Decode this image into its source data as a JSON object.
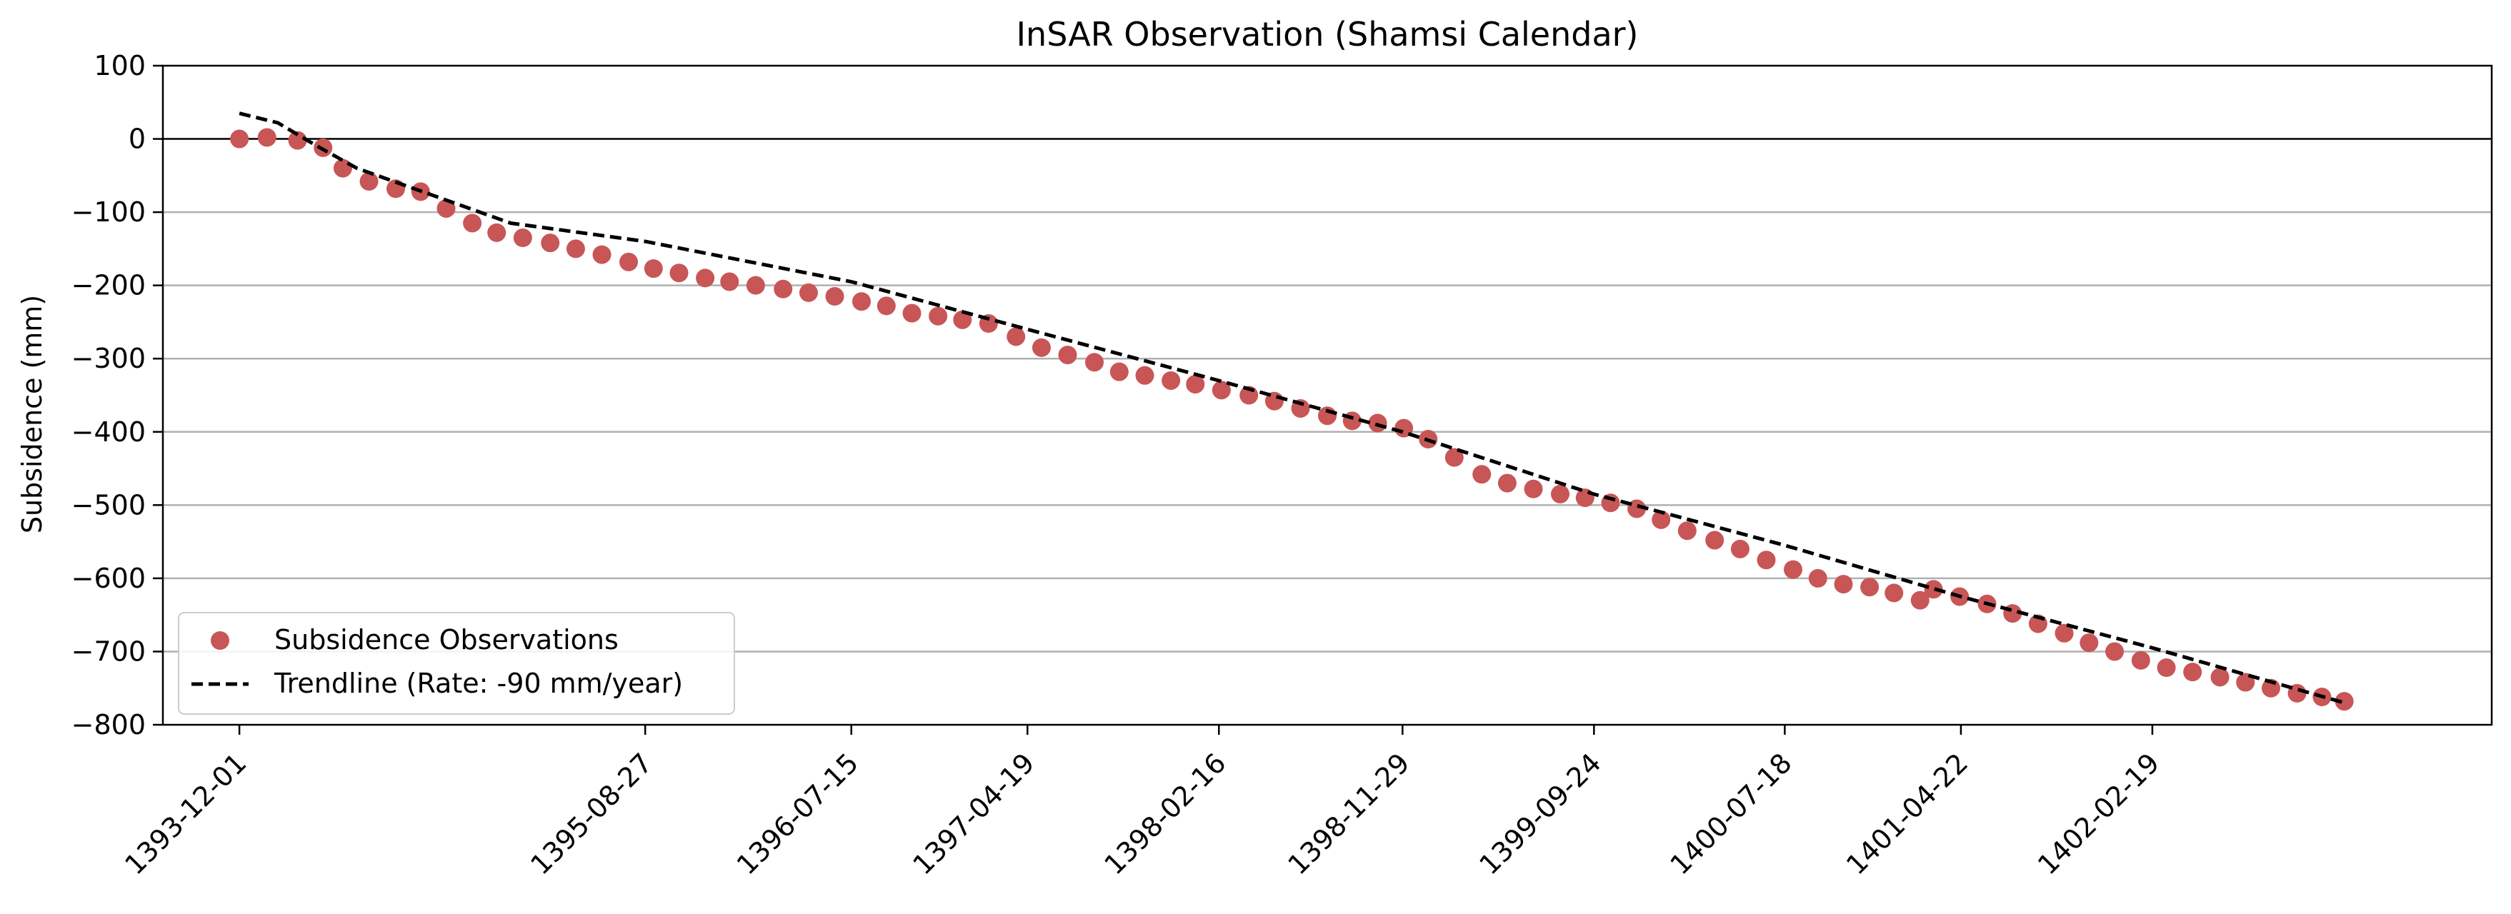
{
  "chart_data": {
    "type": "scatter",
    "title": "InSAR Observation (Shamsi Calendar)",
    "xlabel": "",
    "ylabel": "Subsidence (mm)",
    "ylim": [
      -800,
      100
    ],
    "yticks": [
      100,
      0,
      -100,
      -200,
      -300,
      -400,
      -500,
      -600,
      -700,
      -800
    ],
    "ytick_labels": [
      "100",
      "0",
      "−100",
      "−200",
      "−300",
      "−400",
      "−500",
      "−600",
      "−700",
      "−800"
    ],
    "xlim": [
      "1393-08-01",
      "1403-08-01"
    ],
    "xticks": [
      "1393-12-01",
      "1395-08-27",
      "1396-07-15",
      "1397-04-19",
      "1398-02-16",
      "1398-11-29",
      "1399-09-24",
      "1400-07-18",
      "1401-04-22",
      "1402-02-19"
    ],
    "grid": "horizontal",
    "zero_line": true,
    "legend_position": "lower-left",
    "colors": {
      "observations": "#c85656",
      "trendline": "#000000"
    },
    "series": [
      {
        "name": "Subsidence Observations",
        "type": "scatter",
        "points": [
          [
            "1393-12-01",
            0
          ],
          [
            "1394-01-15",
            2
          ],
          [
            "1394-03-01",
            -2
          ],
          [
            "1394-04-10",
            -12
          ],
          [
            "1394-05-10",
            -40
          ],
          [
            "1394-06-20",
            -58
          ],
          [
            "1394-08-01",
            -68
          ],
          [
            "1394-09-10",
            -72
          ],
          [
            "1394-10-20",
            -95
          ],
          [
            "1394-12-01",
            -115
          ],
          [
            "1395-01-10",
            -128
          ],
          [
            "1395-02-20",
            -135
          ],
          [
            "1395-04-01",
            -142
          ],
          [
            "1395-05-10",
            -150
          ],
          [
            "1395-06-20",
            -158
          ],
          [
            "1395-08-01",
            -168
          ],
          [
            "1395-09-10",
            -177
          ],
          [
            "1395-10-20",
            -183
          ],
          [
            "1395-12-01",
            -190
          ],
          [
            "1396-01-10",
            -195
          ],
          [
            "1396-02-20",
            -200
          ],
          [
            "1396-04-01",
            -205
          ],
          [
            "1396-05-10",
            -210
          ],
          [
            "1396-06-20",
            -215
          ],
          [
            "1396-08-01",
            -222
          ],
          [
            "1396-09-10",
            -228
          ],
          [
            "1396-10-20",
            -238
          ],
          [
            "1396-12-01",
            -242
          ],
          [
            "1397-01-10",
            -247
          ],
          [
            "1397-02-20",
            -252
          ],
          [
            "1397-04-01",
            -270
          ],
          [
            "1397-05-10",
            -285
          ],
          [
            "1397-06-20",
            -295
          ],
          [
            "1397-08-01",
            -305
          ],
          [
            "1397-09-10",
            -318
          ],
          [
            "1397-10-20",
            -323
          ],
          [
            "1397-12-01",
            -330
          ],
          [
            "1398-01-10",
            -335
          ],
          [
            "1398-02-20",
            -343
          ],
          [
            "1398-04-01",
            -350
          ],
          [
            "1398-05-10",
            -358
          ],
          [
            "1398-06-20",
            -368
          ],
          [
            "1398-08-01",
            -378
          ],
          [
            "1398-09-10",
            -385
          ],
          [
            "1398-10-20",
            -388
          ],
          [
            "1398-12-01",
            -395
          ],
          [
            "1399-01-10",
            -410
          ],
          [
            "1399-02-20",
            -435
          ],
          [
            "1399-04-01",
            -458
          ],
          [
            "1399-05-10",
            -470
          ],
          [
            "1399-06-20",
            -478
          ],
          [
            "1399-08-01",
            -485
          ],
          [
            "1399-09-10",
            -490
          ],
          [
            "1399-10-20",
            -497
          ],
          [
            "1399-12-01",
            -505
          ],
          [
            "1400-01-10",
            -520
          ],
          [
            "1400-02-20",
            -535
          ],
          [
            "1400-04-01",
            -548
          ],
          [
            "1400-05-10",
            -560
          ],
          [
            "1400-06-20",
            -575
          ],
          [
            "1400-08-01",
            -588
          ],
          [
            "1400-09-10",
            -600
          ],
          [
            "1400-10-20",
            -608
          ],
          [
            "1400-12-01",
            -612
          ],
          [
            "1401-01-10",
            -620
          ],
          [
            "1401-02-20",
            -630
          ],
          [
            "1401-03-10",
            -615
          ],
          [
            "1401-04-20",
            -625
          ],
          [
            "1401-06-01",
            -635
          ],
          [
            "1401-07-10",
            -648
          ],
          [
            "1401-08-20",
            -662
          ],
          [
            "1401-10-01",
            -675
          ],
          [
            "1401-11-10",
            -688
          ],
          [
            "1401-12-20",
            -700
          ],
          [
            "1402-02-01",
            -712
          ],
          [
            "1402-03-10",
            -722
          ],
          [
            "1402-04-20",
            -728
          ],
          [
            "1402-06-01",
            -735
          ],
          [
            "1402-07-10",
            -742
          ],
          [
            "1402-08-20",
            -750
          ],
          [
            "1402-10-01",
            -757
          ],
          [
            "1402-11-10",
            -762
          ],
          [
            "1402-12-15",
            -768
          ]
        ]
      },
      {
        "name": "Trendline (Rate: -90 mm/year)",
        "type": "line",
        "style": "dashed",
        "points": [
          [
            "1393-12-01",
            35
          ],
          [
            "1394-02-01",
            22
          ],
          [
            "1394-04-01",
            -10
          ],
          [
            "1394-06-01",
            -40
          ],
          [
            "1395-02-01",
            -115
          ],
          [
            "1395-08-27",
            -140
          ],
          [
            "1396-07-15",
            -195
          ],
          [
            "1397-04-19",
            -260
          ],
          [
            "1398-02-16",
            -330
          ],
          [
            "1398-11-29",
            -400
          ],
          [
            "1399-09-24",
            -485
          ],
          [
            "1400-07-18",
            -555
          ],
          [
            "1401-04-22",
            -625
          ],
          [
            "1402-02-19",
            -695
          ],
          [
            "1402-12-15",
            -770
          ]
        ]
      }
    ]
  }
}
